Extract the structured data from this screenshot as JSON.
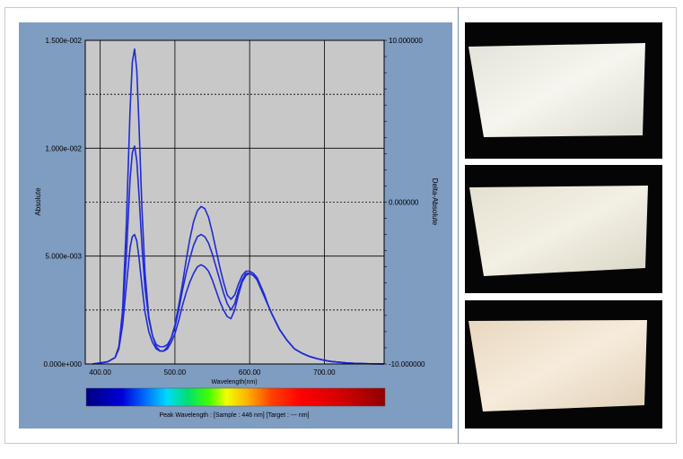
{
  "chart_data": {
    "type": "line",
    "xlabel": "Wavelength(nm)",
    "ylabel": "Absolute",
    "y2label": "Delta-Absolute",
    "xlim": [
      380,
      780
    ],
    "ylim": [
      0,
      0.015
    ],
    "y2lim": [
      -10,
      10
    ],
    "x_ticks": [
      "400.00",
      "500.00",
      "600.00",
      "700.00"
    ],
    "x_tick_values": [
      400,
      500,
      600,
      700
    ],
    "y_ticks": [
      "0.000e+000",
      "5.000e-003",
      "1.000e-002",
      "1.500e-002"
    ],
    "y_tick_values": [
      0,
      0.005,
      0.01,
      0.015
    ],
    "y2_ticks": [
      "-10.000000",
      "0.000000",
      "10.000000"
    ],
    "y2_tick_values": [
      -10,
      0,
      10
    ],
    "grid": true,
    "line_color": "#1f2bd6",
    "plot_background": "#c8c8c8",
    "panel_background": "#7f9cc1",
    "caption": "Peak Wavelength : [Sample : 446 nm] [Target : --- nm]",
    "series": [
      {
        "x": [
          390,
          410,
          420,
          425,
          430,
          435,
          440,
          443,
          446,
          449,
          452,
          456,
          460,
          465,
          470,
          475,
          480,
          485,
          490,
          495,
          500,
          505,
          510,
          515,
          520,
          525,
          530,
          535,
          540,
          545,
          550,
          555,
          560,
          565,
          570,
          575,
          580,
          585,
          590,
          595,
          600,
          605,
          610,
          615,
          620,
          625,
          630,
          640,
          650,
          660,
          670,
          680,
          690,
          700,
          710,
          720,
          730,
          740,
          750,
          760,
          770,
          780
        ],
        "y": [
          0,
          0.0001,
          0.0003,
          0.0008,
          0.0025,
          0.0065,
          0.0118,
          0.014,
          0.0146,
          0.0136,
          0.011,
          0.0071,
          0.0042,
          0.0022,
          0.0013,
          0.0008,
          0.0006,
          0.0006,
          0.0008,
          0.0012,
          0.0018,
          0.0027,
          0.0037,
          0.0048,
          0.0058,
          0.0066,
          0.0071,
          0.0073,
          0.0072,
          0.0068,
          0.0061,
          0.0053,
          0.0045,
          0.0038,
          0.0032,
          0.003,
          0.0032,
          0.0037,
          0.0041,
          0.0043,
          0.0043,
          0.0042,
          0.004,
          0.0036,
          0.0032,
          0.0027,
          0.0023,
          0.0016,
          0.0011,
          0.0007,
          0.0005,
          0.00035,
          0.00025,
          0.00017,
          0.00011,
          8e-05,
          5e-05,
          3e-05,
          2e-05,
          1e-05,
          5e-06,
          0
        ]
      },
      {
        "x": [
          390,
          410,
          420,
          425,
          430,
          435,
          440,
          443,
          446,
          449,
          452,
          456,
          460,
          465,
          470,
          475,
          480,
          485,
          490,
          495,
          500,
          505,
          510,
          515,
          520,
          525,
          530,
          535,
          540,
          545,
          550,
          555,
          560,
          565,
          570,
          575,
          580,
          585,
          590,
          595,
          600,
          605,
          610,
          615,
          620,
          625,
          630,
          640,
          650,
          660,
          670,
          680,
          690,
          700,
          710,
          720,
          730,
          740,
          750,
          760,
          770,
          780
        ],
        "y": [
          0,
          0.0001,
          0.0003,
          0.0008,
          0.0022,
          0.005,
          0.0086,
          0.0098,
          0.0101,
          0.0094,
          0.0078,
          0.0054,
          0.0035,
          0.0021,
          0.0013,
          0.0009,
          0.0008,
          0.0008,
          0.0009,
          0.0012,
          0.0017,
          0.0025,
          0.0034,
          0.0042,
          0.0049,
          0.0055,
          0.0059,
          0.006,
          0.0059,
          0.0056,
          0.0051,
          0.0045,
          0.0039,
          0.0033,
          0.0028,
          0.0025,
          0.0028,
          0.0034,
          0.0039,
          0.0042,
          0.0042,
          0.0041,
          0.0039,
          0.0035,
          0.0031,
          0.0027,
          0.0023,
          0.0016,
          0.0011,
          0.0007,
          0.0005,
          0.00035,
          0.00025,
          0.00017,
          0.00011,
          8e-05,
          5e-05,
          3e-05,
          2e-05,
          1e-05,
          5e-06,
          0
        ]
      },
      {
        "x": [
          390,
          410,
          420,
          425,
          430,
          435,
          440,
          443,
          446,
          449,
          452,
          456,
          460,
          465,
          470,
          475,
          480,
          485,
          490,
          495,
          500,
          505,
          510,
          515,
          520,
          525,
          530,
          535,
          540,
          545,
          550,
          555,
          560,
          565,
          570,
          575,
          580,
          585,
          590,
          595,
          600,
          605,
          610,
          615,
          620,
          625,
          630,
          640,
          650,
          660,
          670,
          680,
          690,
          700,
          710,
          720,
          730,
          740,
          750,
          760,
          770,
          780
        ],
        "y": [
          0,
          0.0001,
          0.0003,
          0.0007,
          0.0018,
          0.0036,
          0.0054,
          0.0059,
          0.006,
          0.0057,
          0.0049,
          0.0036,
          0.0024,
          0.0015,
          0.001,
          0.0007,
          0.0006,
          0.0006,
          0.0007,
          0.001,
          0.0014,
          0.002,
          0.0027,
          0.0033,
          0.0038,
          0.0042,
          0.0045,
          0.0046,
          0.0045,
          0.0043,
          0.0039,
          0.0034,
          0.0029,
          0.0025,
          0.0022,
          0.0021,
          0.0025,
          0.0032,
          0.0038,
          0.0041,
          0.0042,
          0.0041,
          0.0039,
          0.0035,
          0.0031,
          0.0027,
          0.0023,
          0.0016,
          0.0011,
          0.0007,
          0.0005,
          0.00035,
          0.00025,
          0.00017,
          0.00011,
          8e-05,
          5e-05,
          3e-05,
          2e-05,
          1e-05,
          5e-06,
          0
        ]
      }
    ]
  }
}
